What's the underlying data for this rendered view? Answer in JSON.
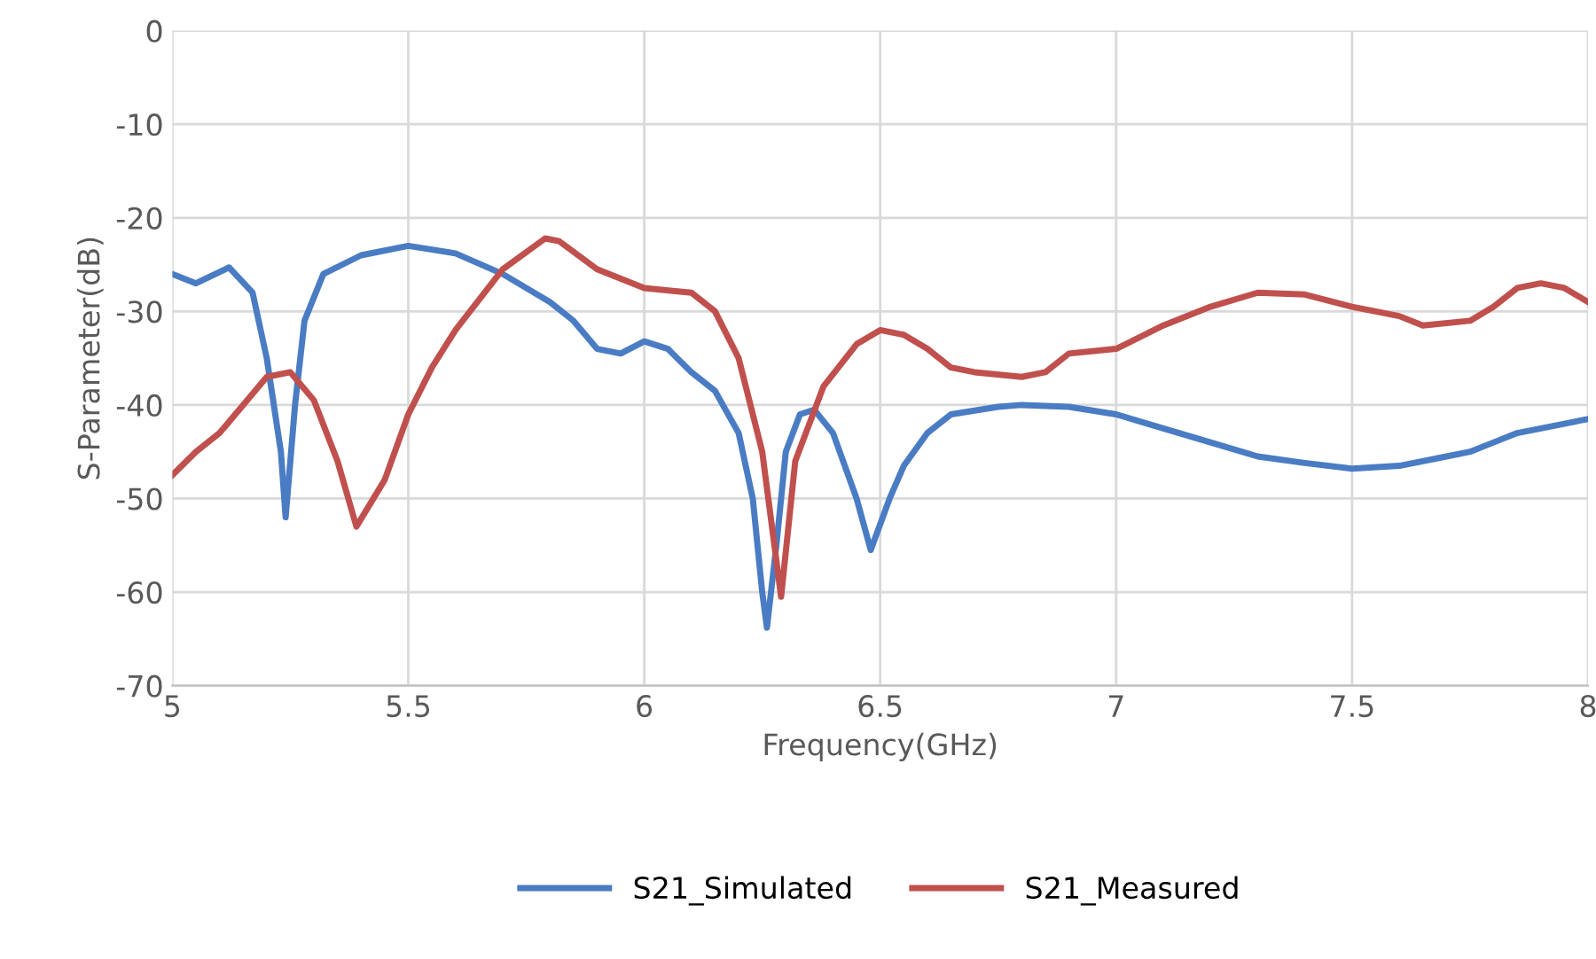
{
  "chart_data": {
    "type": "line",
    "xlabel": "Frequency(GHz)",
    "ylabel": "S-Parameter(dB)",
    "xlim": [
      5,
      8
    ],
    "xticks": [
      5,
      5.5,
      6,
      6.5,
      7,
      7.5,
      8
    ],
    "ylim": [
      -70,
      0
    ],
    "yticks": [
      -70,
      -60,
      -50,
      -40,
      -30,
      -20,
      -10,
      0
    ],
    "grid": true,
    "legend": "bottom",
    "marker": "none",
    "line_style": "solid",
    "series": [
      {
        "name": "S21_Simulated",
        "color": "#4a7cc4",
        "x": [
          5.0,
          5.05,
          5.12,
          5.17,
          5.2,
          5.23,
          5.24,
          5.26,
          5.28,
          5.32,
          5.4,
          5.5,
          5.6,
          5.7,
          5.8,
          5.85,
          5.9,
          5.95,
          6.0,
          6.05,
          6.1,
          6.15,
          6.2,
          6.23,
          6.25,
          6.26,
          6.28,
          6.3,
          6.33,
          6.36,
          6.4,
          6.45,
          6.48,
          6.52,
          6.55,
          6.6,
          6.65,
          6.75,
          6.8,
          6.9,
          7.0,
          7.1,
          7.2,
          7.3,
          7.4,
          7.5,
          7.6,
          7.7,
          7.75,
          7.8,
          7.85,
          7.9,
          8.0
        ],
        "values": [
          -26,
          -27,
          -25.3,
          -28,
          -35,
          -45,
          -52,
          -40,
          -31,
          -26,
          -24,
          -23,
          -23.8,
          -26,
          -29,
          -31,
          -34,
          -34.5,
          -33.2,
          -34,
          -36.5,
          -38.5,
          -43,
          -50,
          -60,
          -63.8,
          -55,
          -45,
          -41,
          -40.5,
          -43,
          -50,
          -55.5,
          -50,
          -46.5,
          -43,
          -41,
          -40.2,
          -40,
          -40.2,
          -41,
          -42.5,
          -44,
          -45.5,
          -46.2,
          -46.8,
          -46.5,
          -45.5,
          -45,
          -44,
          -43,
          -42.5,
          -41.5
        ]
      },
      {
        "name": "S21_Measured",
        "color": "#c0504d",
        "x": [
          5.0,
          5.05,
          5.1,
          5.15,
          5.2,
          5.25,
          5.3,
          5.35,
          5.39,
          5.45,
          5.5,
          5.55,
          5.6,
          5.7,
          5.79,
          5.82,
          5.9,
          6.0,
          6.1,
          6.15,
          6.2,
          6.25,
          6.29,
          6.32,
          6.38,
          6.45,
          6.5,
          6.55,
          6.6,
          6.65,
          6.7,
          6.8,
          6.85,
          6.9,
          7.0,
          7.1,
          7.2,
          7.3,
          7.4,
          7.5,
          7.6,
          7.65,
          7.75,
          7.8,
          7.85,
          7.9,
          7.95,
          8.0
        ],
        "values": [
          -47.5,
          -45,
          -43,
          -40,
          -37,
          -36.5,
          -39.5,
          -46,
          -53,
          -48,
          -41,
          -36,
          -32,
          -25.5,
          -22.2,
          -22.5,
          -25.5,
          -27.5,
          -28,
          -30,
          -35,
          -45,
          -60.5,
          -46,
          -38,
          -33.5,
          -32,
          -32.5,
          -34,
          -36,
          -36.5,
          -37,
          -36.5,
          -34.5,
          -34,
          -31.5,
          -29.5,
          -28,
          -28.2,
          -29.5,
          -30.5,
          -31.5,
          -31,
          -29.5,
          -27.5,
          -27,
          -27.5,
          -29
        ]
      }
    ]
  }
}
